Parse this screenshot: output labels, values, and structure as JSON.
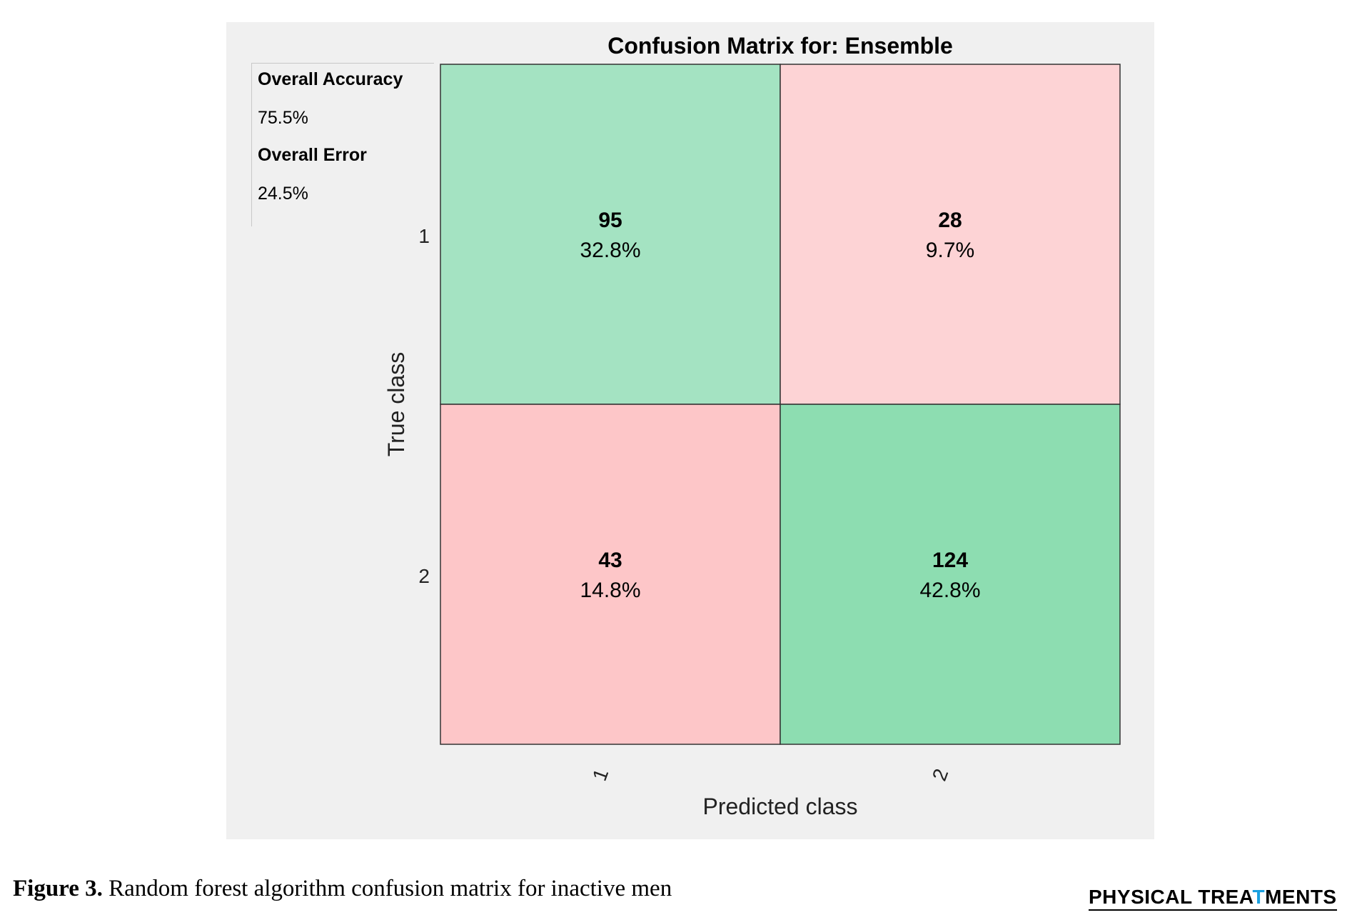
{
  "stats": {
    "accuracy_label": "Overall Accuracy",
    "accuracy_value": "75.5%",
    "error_label": "Overall Error",
    "error_value": "24.5%"
  },
  "chart_data": {
    "type": "heatmap",
    "title": "Confusion Matrix for: Ensemble",
    "xlabel": "Predicted class",
    "ylabel": "True class",
    "x_categories": [
      "1",
      "2"
    ],
    "y_categories": [
      "1",
      "2"
    ],
    "cells": [
      {
        "true": "1",
        "predicted": "1",
        "count": "95",
        "percent": "32.8%",
        "color": "#a4e3c2"
      },
      {
        "true": "1",
        "predicted": "2",
        "count": "28",
        "percent": "9.7%",
        "color": "#fdd3d5"
      },
      {
        "true": "2",
        "predicted": "1",
        "count": "43",
        "percent": "14.8%",
        "color": "#fdc6c8"
      },
      {
        "true": "2",
        "predicted": "2",
        "count": "124",
        "percent": "42.8%",
        "color": "#8dddb1"
      }
    ]
  },
  "caption": {
    "label": "Figure 3.",
    "text": " Random forest algorithm confusion matrix for inactive men"
  },
  "brand": {
    "part1": "PHYSICAL TREA",
    "mark": "T",
    "part2": "MENTS"
  }
}
